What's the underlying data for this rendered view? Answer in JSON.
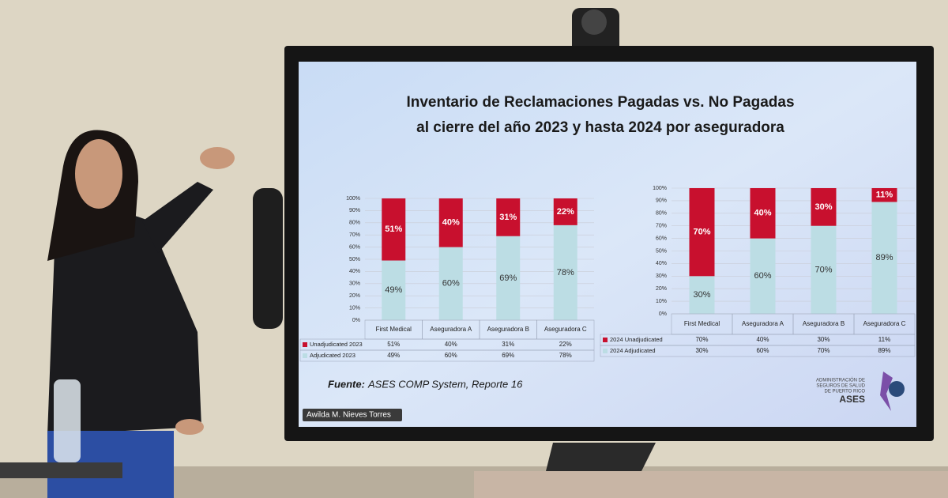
{
  "slide": {
    "title": [
      "Inventario de Reclamaciones Pagadas vs. No Pagadas",
      "al cierre del año 2023 y hasta 2024 por aseguradora"
    ],
    "source_label": "Fuente:",
    "source": "ASES COMP System, Reporte 16",
    "presenter": "Awilda M. Nieves Torres",
    "logo_text": [
      "ADMINISTRACIÓN DE",
      "SEGUROS DE SALUD",
      "DE PUERTO RICO"
    ],
    "logo": "ASES"
  },
  "chart_data": [
    {
      "type": "stacked_bar",
      "categories": [
        "First Medical",
        "Aseguradora A",
        "Aseguradora B",
        "Aseguradora C"
      ],
      "series": [
        {
          "name": "Unadjudicated 2023",
          "color": "#c8102e",
          "values": [
            51,
            40,
            31,
            22
          ],
          "value_labels": [
            "51%",
            "40%",
            "31%",
            "22%"
          ]
        },
        {
          "name": "Adjudicated 2023",
          "color": "#bcdde4",
          "values": [
            49,
            60,
            69,
            78
          ],
          "value_labels": [
            "49%",
            "60%",
            "69%",
            "78%"
          ]
        }
      ],
      "ylim": [
        0,
        100
      ],
      "yticks": [
        {
          "value": 0,
          "label": "0%"
        },
        {
          "value": 10,
          "label": "10%"
        },
        {
          "value": 20,
          "label": "20%"
        },
        {
          "value": 30,
          "label": "30%"
        },
        {
          "value": 40,
          "label": "40%"
        },
        {
          "value": 50,
          "label": "50%"
        },
        {
          "value": 60,
          "label": "60%"
        },
        {
          "value": 70,
          "label": "70%"
        },
        {
          "value": 80,
          "label": "80%"
        },
        {
          "value": 90,
          "label": "90%"
        },
        {
          "value": 100,
          "label": "100%"
        }
      ],
      "grid": true
    },
    {
      "type": "stacked_bar",
      "categories": [
        "First Medical",
        "Aseguradora A",
        "Aseguradora B",
        "Aseguradora C"
      ],
      "series": [
        {
          "name": "2024 Unadjudicated",
          "color": "#c8102e",
          "values": [
            70,
            40,
            30,
            11
          ],
          "value_labels": [
            "70%",
            "40%",
            "30%",
            "11%"
          ]
        },
        {
          "name": "2024 Adjudicated",
          "color": "#bcdde4",
          "values": [
            30,
            60,
            70,
            89
          ],
          "value_labels": [
            "30%",
            "60%",
            "70%",
            "89%"
          ]
        }
      ],
      "ylim": [
        0,
        100
      ],
      "yticks": [
        {
          "value": 0,
          "label": "0%"
        },
        {
          "value": 10,
          "label": "10%"
        },
        {
          "value": 20,
          "label": "20%"
        },
        {
          "value": 30,
          "label": "30%"
        },
        {
          "value": 40,
          "label": "40%"
        },
        {
          "value": 50,
          "label": "50%"
        },
        {
          "value": 60,
          "label": "60%"
        },
        {
          "value": 70,
          "label": "70%"
        },
        {
          "value": 80,
          "label": "80%"
        },
        {
          "value": 90,
          "label": "90%"
        },
        {
          "value": 100,
          "label": "100%"
        }
      ],
      "grid": true
    }
  ]
}
